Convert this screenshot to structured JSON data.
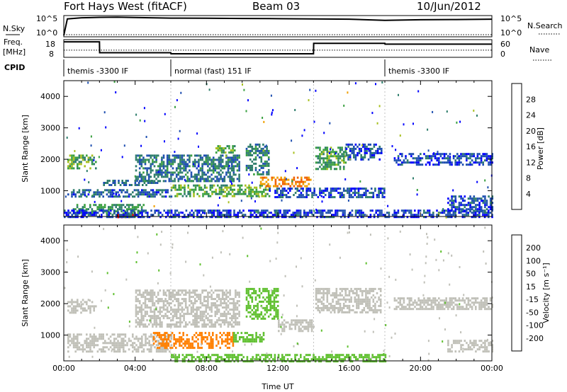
{
  "header": {
    "station": "Fort Hays West (fitACF)",
    "beam": "Beam 03",
    "date": "10/Jun/2012"
  },
  "strip_labels": {
    "nsky": "N.Sky",
    "nsearch": "N.Search",
    "freq_line1": "Freq.",
    "freq_line2": "[MHz]",
    "nave": "Nave",
    "cpid": "CPID"
  },
  "strip_ticks": {
    "noise_left": [
      "10^5",
      "10^0"
    ],
    "noise_right": [
      "10^5",
      "10^0"
    ],
    "freq_left": [
      "18",
      "8"
    ],
    "nave_right": [
      "60",
      "0"
    ]
  },
  "cpid_segments": [
    {
      "start_h": 0,
      "end_h": 6,
      "label": "themis -3300 IF"
    },
    {
      "start_h": 6,
      "end_h": 18,
      "label": "normal (fast) 151 IF"
    },
    {
      "start_h": 18,
      "end_h": 24,
      "label": "themis -3300 IF"
    }
  ],
  "colors": {
    "power": [
      "#0000ff",
      "#1f4fb0",
      "#2e7d6b",
      "#3aa040",
      "#a8c020",
      "#f0a000",
      "#f06000",
      "#e00000"
    ],
    "velocity": [
      "#e00000",
      "#ff4000",
      "#ff8000",
      "#ffb000",
      "#c0c0b8",
      "#60c030",
      "#2e8b57",
      "#1040b0",
      "#0000d0"
    ]
  },
  "chart_data": [
    {
      "type": "line",
      "title": "",
      "series": [
        {
          "name": "N.Sky",
          "x": [
            0,
            0.2,
            1,
            2,
            3,
            4,
            6,
            8,
            10,
            12,
            14,
            16,
            18,
            20,
            22,
            24
          ],
          "values": [
            1,
            30000,
            60000,
            80000,
            90000,
            70000,
            50000,
            45000,
            40000,
            35000,
            30000,
            25000,
            12000,
            18000,
            20000,
            25000
          ]
        },
        {
          "name": "N.Search",
          "x": [
            0,
            24
          ],
          "values": [
            1,
            1
          ]
        }
      ],
      "ylim": [
        "10^0",
        "10^5"
      ]
    },
    {
      "type": "line",
      "series": [
        {
          "name": "Freq.",
          "x": [
            0,
            2,
            2.01,
            6,
            6.01,
            14,
            14.01,
            18,
            18.01,
            24
          ],
          "values": [
            17.5,
            17.5,
            10.5,
            10.5,
            9.8,
            9.8,
            16.5,
            16.5,
            16.0,
            16.0
          ]
        },
        {
          "name": "Nave",
          "x": [
            0,
            24
          ],
          "values": [
            25,
            25
          ]
        }
      ],
      "ylim_left": [
        8,
        18
      ],
      "ylim_right": [
        0,
        60
      ]
    },
    {
      "type": "heatmap",
      "quantity": "Power",
      "xlabel": "",
      "ylabel": "Slant Range [km]",
      "xlim": [
        0,
        24
      ],
      "ylim": [
        180,
        4500
      ],
      "yticks": [
        1000,
        2000,
        3000,
        4000
      ],
      "colorbar_label": "Power [dB]",
      "colorbar_ticks": [
        4,
        8,
        12,
        16,
        20,
        24,
        28
      ],
      "colorbar_range": [
        0,
        32
      ],
      "bands": [
        {
          "t0": 0.2,
          "t1": 1.8,
          "r0": 1700,
          "r1": 2150,
          "v": 14
        },
        {
          "t0": 0.2,
          "t1": 6,
          "r0": 780,
          "r1": 1050,
          "v": 7
        },
        {
          "t0": 0.5,
          "t1": 4.5,
          "r0": 300,
          "r1": 580,
          "v": 12
        },
        {
          "t0": 3.0,
          "t1": 4.0,
          "r0": 190,
          "r1": 260,
          "v": 29
        },
        {
          "t0": 2.2,
          "t1": 5.2,
          "r0": 1150,
          "r1": 1350,
          "v": 8
        },
        {
          "t0": 4.0,
          "t1": 9.8,
          "r0": 1300,
          "r1": 2150,
          "v": 9
        },
        {
          "t0": 8.5,
          "t1": 9.6,
          "r0": 2200,
          "r1": 2450,
          "v": 14
        },
        {
          "t0": 6,
          "t1": 11.5,
          "r0": 800,
          "r1": 1200,
          "v": 14
        },
        {
          "t0": 11.0,
          "t1": 13.8,
          "r0": 1150,
          "r1": 1450,
          "v": 24
        },
        {
          "t0": 10.2,
          "t1": 11.5,
          "r0": 1500,
          "r1": 2500,
          "v": 10
        },
        {
          "t0": 11.5,
          "t1": 14.0,
          "r0": 800,
          "r1": 1100,
          "v": 6
        },
        {
          "t0": 14.1,
          "t1": 15.8,
          "r0": 1700,
          "r1": 2400,
          "v": 13
        },
        {
          "t0": 15.8,
          "t1": 17.8,
          "r0": 2000,
          "r1": 2500,
          "v": 6
        },
        {
          "t0": 14.0,
          "t1": 18.0,
          "r0": 800,
          "r1": 1100,
          "v": 6
        },
        {
          "t0": 18.5,
          "t1": 24,
          "r0": 1850,
          "r1": 2200,
          "v": 5
        },
        {
          "t0": 21.5,
          "t1": 24,
          "r0": 350,
          "r1": 850,
          "v": 6
        },
        {
          "t0": 0,
          "t1": 24,
          "r0": 180,
          "r1": 400,
          "v": 5
        }
      ]
    },
    {
      "type": "heatmap",
      "quantity": "Velocity",
      "xlabel": "Time UT",
      "ylabel": "Slant Range [km]",
      "xlim": [
        0,
        24
      ],
      "xticks": [
        "00:00",
        "04:00",
        "08:00",
        "12:00",
        "16:00",
        "20:00",
        "00:00"
      ],
      "ylim": [
        180,
        4500
      ],
      "yticks": [
        1000,
        2000,
        3000,
        4000
      ],
      "colorbar_label": "Velocity [m s^-1]",
      "colorbar_ticks": [
        200,
        100,
        50,
        15,
        -15,
        -50,
        -100,
        -200
      ],
      "bands": [
        {
          "t0": 0.2,
          "t1": 1.8,
          "r0": 1700,
          "r1": 2150,
          "v": 0
        },
        {
          "t0": 0.2,
          "t1": 6,
          "r0": 450,
          "r1": 1050,
          "v": 0
        },
        {
          "t0": 4.0,
          "t1": 9.8,
          "r0": 1300,
          "r1": 2450,
          "v": 0
        },
        {
          "t0": 5.0,
          "t1": 9.5,
          "r0": 600,
          "r1": 1100,
          "v": -60
        },
        {
          "t0": 9.5,
          "t1": 11.2,
          "r0": 800,
          "r1": 1100,
          "v": 30
        },
        {
          "t0": 10.2,
          "t1": 12.0,
          "r0": 1500,
          "r1": 2500,
          "v": 30
        },
        {
          "t0": 12.0,
          "t1": 14.0,
          "r0": 1150,
          "r1": 1500,
          "v": 0
        },
        {
          "t0": 14.1,
          "t1": 17.8,
          "r0": 1700,
          "r1": 2500,
          "v": 0
        },
        {
          "t0": 6.0,
          "t1": 18.0,
          "r0": 180,
          "r1": 400,
          "v": 30
        },
        {
          "t0": 18.5,
          "t1": 24,
          "r0": 1850,
          "r1": 2200,
          "v": 0
        },
        {
          "t0": 21.5,
          "t1": 24,
          "r0": 450,
          "r1": 850,
          "v": 0
        }
      ]
    }
  ],
  "axis_label_time": "Time UT",
  "axis_label_range": "Slant Range [km]",
  "colorbar_power_label": "Power [dB]",
  "colorbar_velocity_label": "Velocity [m s⁻¹]"
}
